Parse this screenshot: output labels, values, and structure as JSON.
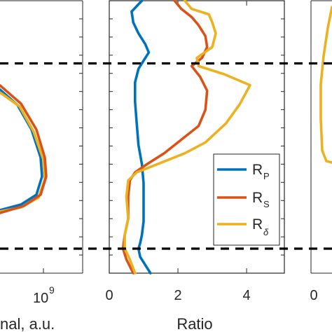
{
  "figure": {
    "left_panel": {
      "xlabel": "nal, a.u.",
      "tick_base": "10",
      "tick_exp": "9"
    },
    "mid_panel": {
      "xlabel": "Ratio",
      "xticks": [
        "0",
        "2",
        "4"
      ]
    },
    "right_panel": {
      "xticks": [
        "0"
      ]
    }
  },
  "legend": {
    "entries": [
      {
        "base": "R",
        "sub": "P"
      },
      {
        "base": "R",
        "sub": "S"
      },
      {
        "base": "R",
        "sub": "δ"
      }
    ]
  },
  "colors": {
    "RP": "#0072BD",
    "RS": "#D95319",
    "Rdelta": "#EDB120"
  },
  "chart_data": {
    "type": "line",
    "xlabel": "Ratio",
    "ylabel": "",
    "xlim": [
      0,
      5.1
    ],
    "ylim": [
      0,
      1
    ],
    "y_direction": "top-to-bottom",
    "xticks": [
      0,
      2,
      4
    ],
    "reference_lines_y": [
      0.23,
      0.91
    ],
    "series": [
      {
        "name": "R_P",
        "color": "#0072BD",
        "points": [
          [
            0.95,
            0.0
          ],
          [
            0.8,
            0.02
          ],
          [
            0.65,
            0.04
          ],
          [
            0.7,
            0.08
          ],
          [
            0.85,
            0.12
          ],
          [
            1.05,
            0.16
          ],
          [
            1.15,
            0.19
          ],
          [
            1.0,
            0.22
          ],
          [
            0.85,
            0.25
          ],
          [
            0.75,
            0.3
          ],
          [
            0.75,
            0.37
          ],
          [
            0.8,
            0.45
          ],
          [
            0.85,
            0.53
          ],
          [
            0.95,
            0.6
          ],
          [
            1.0,
            0.67
          ],
          [
            1.0,
            0.74
          ],
          [
            1.0,
            0.81
          ],
          [
            0.95,
            0.86
          ],
          [
            0.9,
            0.89
          ],
          [
            0.85,
            0.91
          ],
          [
            0.9,
            0.94
          ],
          [
            1.2,
            1.0
          ]
        ]
      },
      {
        "name": "R_S",
        "color": "#D95319",
        "points": [
          [
            1.9,
            0.0
          ],
          [
            2.1,
            0.03
          ],
          [
            2.4,
            0.06
          ],
          [
            2.6,
            0.09
          ],
          [
            2.8,
            0.13
          ],
          [
            2.85,
            0.17
          ],
          [
            2.7,
            0.21
          ],
          [
            2.4,
            0.24
          ],
          [
            2.65,
            0.28
          ],
          [
            2.85,
            0.33
          ],
          [
            2.8,
            0.4
          ],
          [
            2.6,
            0.46
          ],
          [
            2.1,
            0.51
          ],
          [
            1.6,
            0.56
          ],
          [
            1.1,
            0.6
          ],
          [
            0.75,
            0.63
          ],
          [
            0.6,
            0.66
          ],
          [
            0.55,
            0.72
          ],
          [
            0.55,
            0.8
          ],
          [
            0.45,
            0.86
          ],
          [
            0.4,
            0.91
          ],
          [
            0.5,
            0.95
          ],
          [
            0.7,
            1.0
          ]
        ]
      },
      {
        "name": "R_δ",
        "color": "#EDB120",
        "points": [
          [
            2.2,
            0.0
          ],
          [
            2.4,
            0.03
          ],
          [
            2.9,
            0.05
          ],
          [
            3.0,
            0.08
          ],
          [
            3.1,
            0.12
          ],
          [
            3.0,
            0.17
          ],
          [
            2.55,
            0.21
          ],
          [
            2.6,
            0.24
          ],
          [
            3.35,
            0.27
          ],
          [
            4.1,
            0.31
          ],
          [
            3.8,
            0.38
          ],
          [
            3.4,
            0.45
          ],
          [
            2.8,
            0.52
          ],
          [
            2.2,
            0.56
          ],
          [
            1.4,
            0.6
          ],
          [
            0.8,
            0.63
          ],
          [
            0.55,
            0.66
          ],
          [
            0.5,
            0.72
          ],
          [
            0.55,
            0.8
          ],
          [
            0.45,
            0.86
          ],
          [
            0.45,
            0.91
          ],
          [
            0.6,
            0.95
          ],
          [
            0.75,
            1.0
          ]
        ]
      }
    ]
  },
  "left_panel_curves": {
    "type": "line",
    "series": [
      {
        "name": "R_P",
        "color": "#0072BD"
      },
      {
        "name": "R_S",
        "color": "#D95319"
      },
      {
        "name": "R_δ",
        "color": "#EDB120"
      }
    ]
  }
}
